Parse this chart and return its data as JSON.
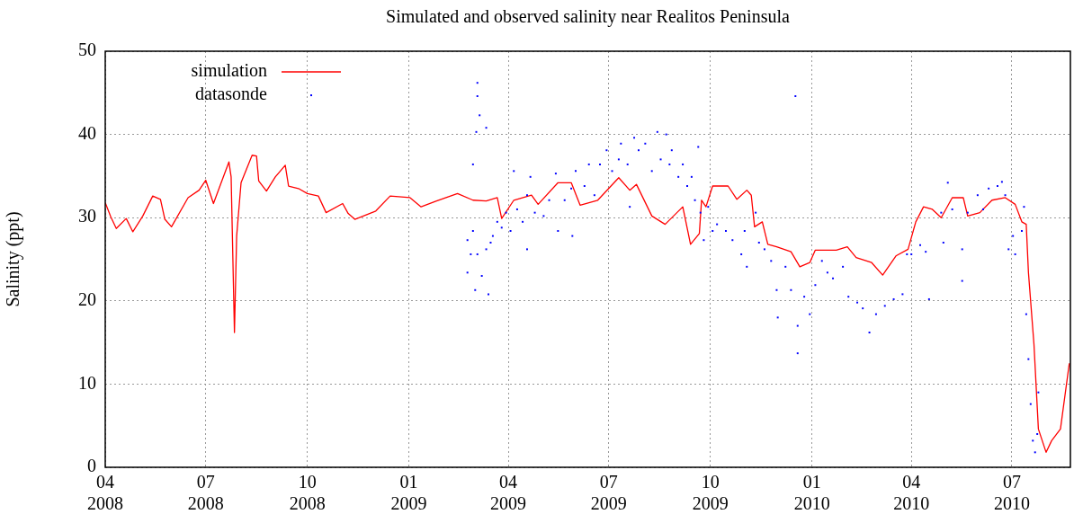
{
  "chart_data": {
    "type": "scatter",
    "title": "Simulated and observed salinity near Realitos Peninsula",
    "ylabel": "Salinity (ppt)",
    "xlim": [
      "2008-04-01",
      "2010-08-23"
    ],
    "xticks": [
      {
        "value": "2008-04-01",
        "label": "04\n2008"
      },
      {
        "value": "2008-07-01",
        "label": "07\n2008"
      },
      {
        "value": "2008-10-01",
        "label": "10\n2008"
      },
      {
        "value": "2009-01-01",
        "label": "01\n2009"
      },
      {
        "value": "2009-04-01",
        "label": "04\n2009"
      },
      {
        "value": "2009-07-01",
        "label": "07\n2009"
      },
      {
        "value": "2009-10-01",
        "label": "10\n2009"
      },
      {
        "value": "2010-01-01",
        "label": "01\n2010"
      },
      {
        "value": "2010-04-01",
        "label": "04\n2010"
      },
      {
        "value": "2010-07-01",
        "label": "07\n2010"
      }
    ],
    "ylim": [
      0,
      50
    ],
    "yticks": [
      0,
      10,
      20,
      30,
      40,
      50
    ],
    "grid": true,
    "legend": "top left",
    "series": [
      {
        "name": "simulation",
        "type": "line",
        "color": "#ff0000",
        "x": [
          "2008-04-01",
          "2008-04-06",
          "2008-04-11",
          "2008-04-20",
          "2008-04-26",
          "2008-05-05",
          "2008-05-14",
          "2008-05-21",
          "2008-05-25",
          "2008-05-31",
          "2008-06-15",
          "2008-06-25",
          "2008-07-01",
          "2008-07-08",
          "2008-07-15",
          "2008-07-22",
          "2008-07-24",
          "2008-07-27",
          "2008-07-29",
          "2008-08-02",
          "2008-08-12",
          "2008-08-16",
          "2008-08-18",
          "2008-08-25",
          "2008-09-02",
          "2008-09-11",
          "2008-09-14",
          "2008-09-23",
          "2008-10-01",
          "2008-10-11",
          "2008-10-18",
          "2008-11-02",
          "2008-11-07",
          "2008-11-13",
          "2008-12-02",
          "2008-12-15",
          "2009-01-02",
          "2009-01-12",
          "2009-01-26",
          "2009-02-14",
          "2009-02-28",
          "2009-03-12",
          "2009-03-22",
          "2009-03-26",
          "2009-04-06",
          "2009-04-22",
          "2009-04-28",
          "2009-05-16",
          "2009-05-28",
          "2009-06-05",
          "2009-06-21",
          "2009-07-10",
          "2009-07-20",
          "2009-07-26",
          "2009-08-09",
          "2009-08-21",
          "2009-09-06",
          "2009-09-13",
          "2009-09-21",
          "2009-09-23",
          "2009-09-27",
          "2009-10-03",
          "2009-10-17",
          "2009-10-25",
          "2009-11-03",
          "2009-11-07",
          "2009-11-10",
          "2009-11-17",
          "2009-11-22",
          "2009-11-30",
          "2009-12-13",
          "2009-12-21",
          "2009-12-30",
          "2010-01-04",
          "2010-01-23",
          "2010-02-02",
          "2010-02-10",
          "2010-02-24",
          "2010-03-06",
          "2010-03-18",
          "2010-03-29",
          "2010-04-05",
          "2010-04-12",
          "2010-04-20",
          "2010-04-28",
          "2010-05-08",
          "2010-05-18",
          "2010-05-22",
          "2010-06-02",
          "2010-06-13",
          "2010-06-25",
          "2010-07-04",
          "2010-07-10",
          "2010-07-14",
          "2010-07-16",
          "2010-07-21",
          "2010-07-25",
          "2010-08-01",
          "2010-08-06",
          "2010-08-14",
          "2010-08-22"
        ],
        "values": [
          31.8,
          30.1,
          28.7,
          29.9,
          28.3,
          30.2,
          32.6,
          32.2,
          29.8,
          28.9,
          32.4,
          33.3,
          34.5,
          31.7,
          34.2,
          36.7,
          34.9,
          16.2,
          27.8,
          34.2,
          37.5,
          37.4,
          34.4,
          33.2,
          34.9,
          36.3,
          33.8,
          33.5,
          32.9,
          32.6,
          30.6,
          31.7,
          30.5,
          29.8,
          30.8,
          32.6,
          32.4,
          31.3,
          32.0,
          32.9,
          32.1,
          32.0,
          32.4,
          29.9,
          32.1,
          32.7,
          31.6,
          34.2,
          34.2,
          31.5,
          32.1,
          34.8,
          33.3,
          34.0,
          30.2,
          29.2,
          31.3,
          26.8,
          28.1,
          32.1,
          31.3,
          33.8,
          33.8,
          32.2,
          33.3,
          32.7,
          28.9,
          29.5,
          26.8,
          26.5,
          25.9,
          24.1,
          24.6,
          26.1,
          26.1,
          26.5,
          25.2,
          24.6,
          23.1,
          25.4,
          26.2,
          29.5,
          31.3,
          31.0,
          30.0,
          32.4,
          32.4,
          30.2,
          30.6,
          32.1,
          32.4,
          31.6,
          29.5,
          29.2,
          23.4,
          14.8,
          4.6,
          1.8,
          3.2,
          4.6,
          12.5
        ]
      },
      {
        "name": "datasonde",
        "type": "scatter",
        "marker": "square",
        "color": "#0000ff",
        "x": [
          "2009-02-23",
          "2009-02-23",
          "2009-02-26",
          "2009-02-28",
          "2009-02-28",
          "2009-03-02",
          "2009-03-03",
          "2009-03-04",
          "2009-03-04",
          "2009-03-04",
          "2009-03-06",
          "2009-03-08",
          "2009-03-12",
          "2009-03-12",
          "2009-03-14",
          "2009-03-16",
          "2009-03-18",
          "2009-03-22",
          "2009-03-26",
          "2009-03-30",
          "2009-04-03",
          "2009-04-06",
          "2009-04-09",
          "2009-04-14",
          "2009-04-18",
          "2009-04-18",
          "2009-04-21",
          "2009-04-25",
          "2009-05-03",
          "2009-05-08",
          "2009-05-14",
          "2009-05-16",
          "2009-05-22",
          "2009-05-28",
          "2009-05-29",
          "2009-06-01",
          "2009-06-09",
          "2009-06-13",
          "2009-06-18",
          "2009-06-23",
          "2009-06-29",
          "2009-07-04",
          "2009-07-10",
          "2009-07-12",
          "2009-07-18",
          "2009-07-20",
          "2009-07-24",
          "2009-07-28",
          "2009-08-03",
          "2009-08-09",
          "2009-08-14",
          "2009-08-17",
          "2009-08-22",
          "2009-08-25",
          "2009-08-27",
          "2009-09-02",
          "2009-09-06",
          "2009-09-10",
          "2009-09-14",
          "2009-09-17",
          "2009-09-20",
          "2009-09-22",
          "2009-09-25",
          "2009-09-29",
          "2009-10-03",
          "2009-10-07",
          "2009-10-15",
          "2009-10-21",
          "2009-10-29",
          "2009-11-01",
          "2009-11-03",
          "2009-11-11",
          "2009-11-14",
          "2009-11-19",
          "2009-11-25",
          "2009-11-30",
          "2009-12-01",
          "2009-12-08",
          "2009-12-13",
          "2009-12-17",
          "2009-12-19",
          "2009-12-19",
          "2009-12-25",
          "2009-12-30",
          "2010-01-04",
          "2010-01-10",
          "2010-01-15",
          "2010-01-20",
          "2010-01-29",
          "2010-02-03",
          "2010-02-11",
          "2010-02-16",
          "2010-02-22",
          "2010-02-28",
          "2010-03-08",
          "2010-03-16",
          "2010-03-24",
          "2010-03-28",
          "2010-04-01",
          "2010-04-09",
          "2010-04-14",
          "2010-04-17",
          "2010-04-28",
          "2010-04-30",
          "2010-05-04",
          "2010-05-08",
          "2010-05-17",
          "2010-05-17",
          "2010-05-22",
          "2010-05-31",
          "2010-06-05",
          "2010-06-10",
          "2010-06-18",
          "2010-06-22",
          "2010-06-25",
          "2010-06-28",
          "2010-07-02",
          "2010-07-04",
          "2010-07-10",
          "2010-07-12",
          "2010-07-14",
          "2010-07-16",
          "2010-07-18",
          "2010-07-20",
          "2010-07-22",
          "2010-07-24",
          "2010-07-25"
        ],
        "values": [
          27.3,
          23.4,
          25.6,
          28.4,
          36.4,
          21.3,
          40.3,
          25.6,
          46.2,
          44.6,
          42.3,
          23.0,
          26.2,
          40.8,
          20.8,
          27.0,
          27.8,
          29.5,
          28.8,
          30.6,
          28.4,
          35.6,
          31.0,
          29.5,
          32.7,
          26.2,
          34.9,
          30.6,
          30.2,
          32.1,
          35.3,
          28.4,
          32.1,
          33.5,
          27.8,
          35.6,
          33.8,
          36.4,
          32.7,
          36.4,
          38.1,
          35.6,
          37.0,
          38.9,
          36.4,
          31.3,
          39.6,
          38.1,
          38.9,
          35.6,
          40.3,
          37.0,
          40.0,
          36.4,
          38.1,
          34.9,
          36.4,
          33.8,
          34.9,
          32.1,
          38.5,
          30.6,
          27.3,
          31.3,
          28.4,
          29.2,
          28.4,
          27.3,
          25.6,
          28.4,
          24.1,
          30.6,
          27.0,
          26.2,
          24.8,
          21.3,
          18.0,
          24.1,
          21.3,
          44.6,
          13.7,
          17.0,
          20.5,
          18.4,
          21.9,
          24.8,
          23.4,
          22.7,
          24.1,
          20.5,
          19.8,
          19.1,
          16.2,
          18.4,
          19.4,
          20.2,
          20.8,
          25.6,
          25.6,
          26.7,
          25.9,
          20.2,
          30.6,
          27.0,
          34.2,
          31.0,
          26.2,
          22.4,
          30.6,
          32.7,
          31.0,
          33.5,
          33.8,
          34.3,
          32.7,
          26.2,
          27.8,
          25.6,
          28.4,
          31.3,
          18.4,
          13.0,
          7.6,
          3.2,
          1.8,
          4.0,
          9.0
        ]
      }
    ]
  }
}
